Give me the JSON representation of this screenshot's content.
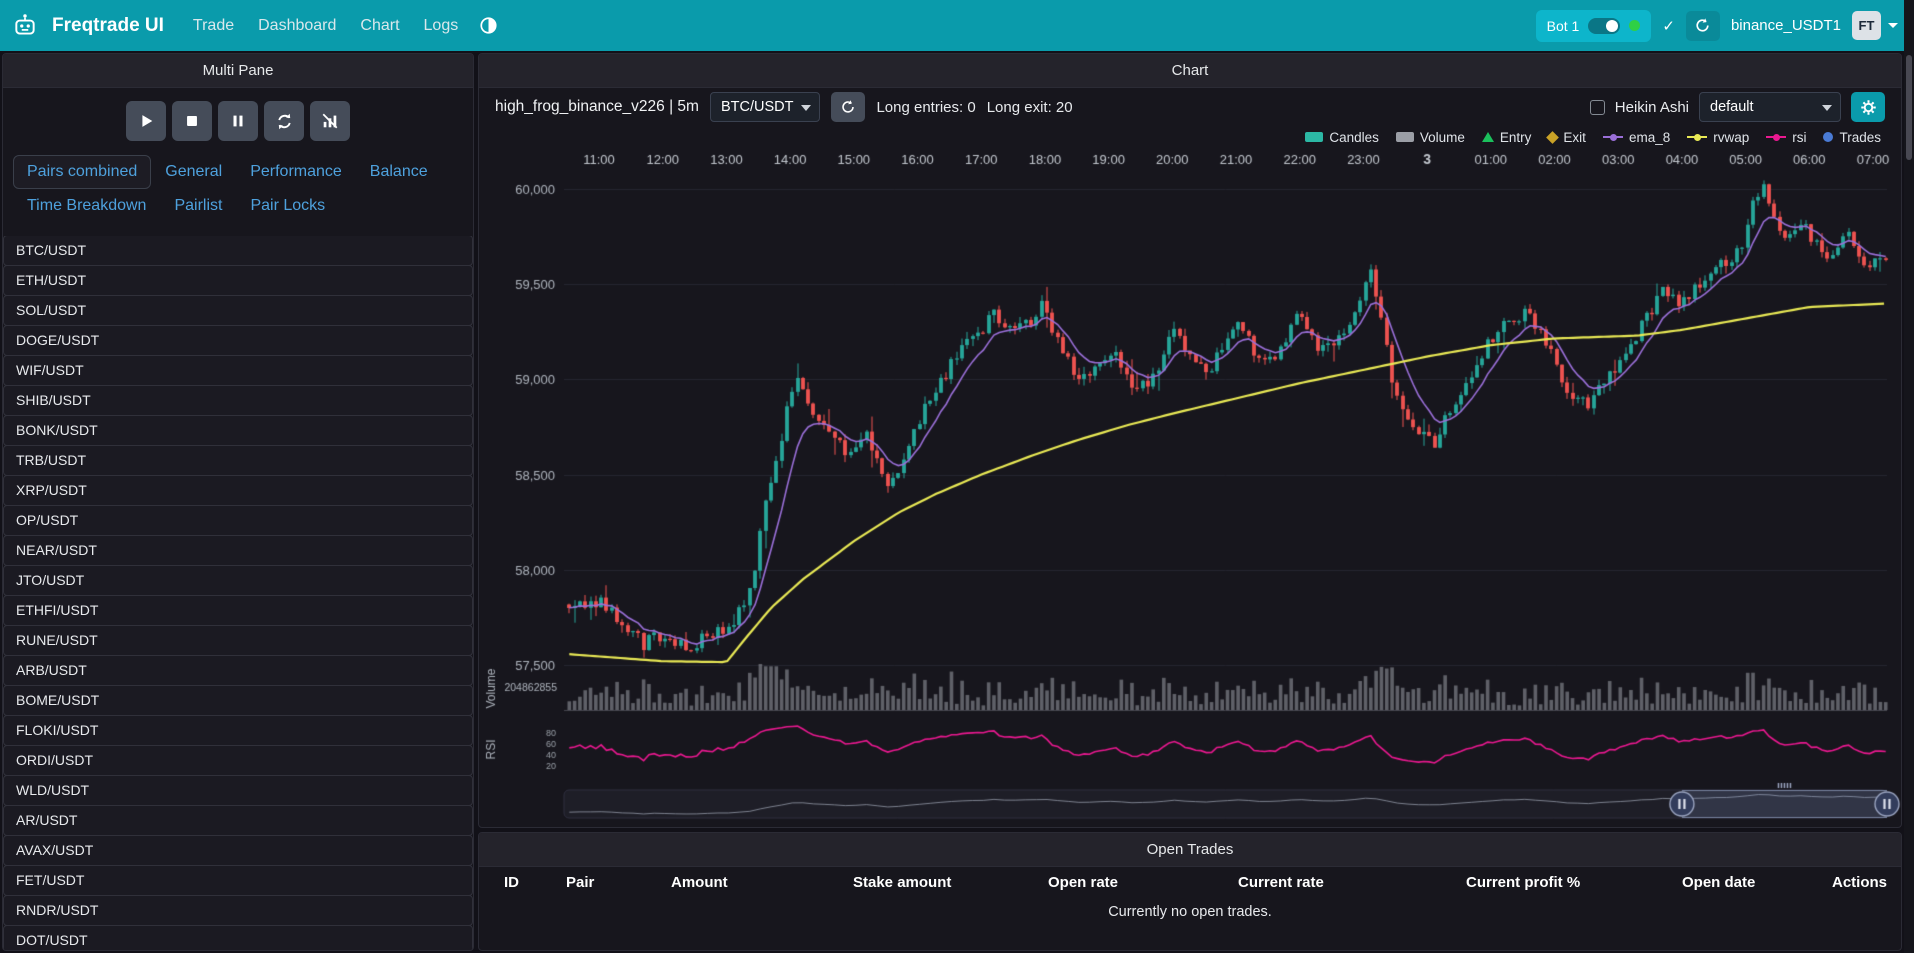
{
  "navbar": {
    "brand": "Freqtrade UI",
    "links": [
      "Trade",
      "Dashboard",
      "Chart",
      "Logs"
    ],
    "bot_badge": {
      "label": "Bot 1"
    },
    "check_icon": "✓",
    "exchange_label": "binance_USDT1",
    "avatar_label": "FT"
  },
  "left_panel": {
    "title": "Multi Pane",
    "tabs_row1": [
      "Pairs combined",
      "General",
      "Performance",
      "Balance"
    ],
    "tabs_row2": [
      "Time Breakdown",
      "Pairlist",
      "Pair Locks"
    ],
    "active_tab": "Pairs combined",
    "pairs": [
      "BTC/USDT",
      "ETH/USDT",
      "SOL/USDT",
      "DOGE/USDT",
      "WIF/USDT",
      "SHIB/USDT",
      "BONK/USDT",
      "TRB/USDT",
      "XRP/USDT",
      "OP/USDT",
      "NEAR/USDT",
      "JTO/USDT",
      "ETHFI/USDT",
      "RUNE/USDT",
      "ARB/USDT",
      "BOME/USDT",
      "FLOKI/USDT",
      "ORDI/USDT",
      "WLD/USDT",
      "AR/USDT",
      "AVAX/USDT",
      "FET/USDT",
      "RNDR/USDT",
      "DOT/USDT"
    ]
  },
  "chart_panel": {
    "title": "Chart",
    "strategy_label": "high_frog_binance_v226 | 5m",
    "pair_select_value": "BTC/USDT",
    "entries_label": "Long entries: 0",
    "exit_label": "Long exit: 20",
    "heikin_ashi_label": "Heikin Ashi",
    "plot_config_value": "default",
    "legend": [
      {
        "label": "Candles",
        "type": "rect",
        "color": "#2cb8a5"
      },
      {
        "label": "Volume",
        "type": "rect",
        "color": "#9b9ea6"
      },
      {
        "label": "Entry",
        "type": "triangle",
        "color": "#1bc05c"
      },
      {
        "label": "Exit",
        "type": "diamond",
        "color": "#c9a227"
      },
      {
        "label": "ema_8",
        "type": "line",
        "color": "#9a6fd8"
      },
      {
        "label": "rvwap",
        "type": "line",
        "color": "#e9e955"
      },
      {
        "label": "rsi",
        "type": "line",
        "color": "#ea1890"
      },
      {
        "label": "Trades",
        "type": "circle",
        "color": "#4a7bd5"
      }
    ]
  },
  "open_trades": {
    "title": "Open Trades",
    "columns": [
      "ID",
      "Pair",
      "Amount",
      "Stake amount",
      "Open rate",
      "Current rate",
      "Current profit %",
      "Open date",
      "Actions"
    ],
    "empty_message": "Currently no open trades."
  },
  "chart_data": {
    "type": "candlestick",
    "pair": "BTC/USDT",
    "timeframe": "5m",
    "x_labels": [
      "11:00",
      "12:00",
      "13:00",
      "14:00",
      "15:00",
      "16:00",
      "17:00",
      "18:00",
      "19:00",
      "20:00",
      "21:00",
      "22:00",
      "23:00",
      "3",
      "01:00",
      "02:00",
      "03:00",
      "04:00",
      "05:00",
      "06:00",
      "07:00"
    ],
    "y_ticks": [
      57500,
      58000,
      58500,
      59000,
      59500,
      60000
    ],
    "y_range": [
      57350,
      60150
    ],
    "price_anchors": [
      [
        10.4,
        57790
      ],
      [
        11,
        57830
      ],
      [
        11.3,
        57740
      ],
      [
        11.7,
        57610
      ],
      [
        12,
        57660
      ],
      [
        12.4,
        57590
      ],
      [
        12.8,
        57680
      ],
      [
        13.1,
        57710
      ],
      [
        13.4,
        57900
      ],
      [
        13.6,
        58320
      ],
      [
        13.8,
        58560
      ],
      [
        14,
        58920
      ],
      [
        14.1,
        59060
      ],
      [
        14.3,
        58820
      ],
      [
        14.6,
        58760
      ],
      [
        14.9,
        58610
      ],
      [
        15.2,
        58700
      ],
      [
        15.5,
        58440
      ],
      [
        15.8,
        58560
      ],
      [
        16.1,
        58860
      ],
      [
        16.4,
        59010
      ],
      [
        16.7,
        59160
      ],
      [
        17,
        59260
      ],
      [
        17.2,
        59360
      ],
      [
        17.5,
        59240
      ],
      [
        17.8,
        59310
      ],
      [
        18,
        59400
      ],
      [
        18.2,
        59190
      ],
      [
        18.5,
        59010
      ],
      [
        18.8,
        59060
      ],
      [
        19.1,
        59150
      ],
      [
        19.4,
        58950
      ],
      [
        19.7,
        59010
      ],
      [
        20,
        59260
      ],
      [
        20.3,
        59110
      ],
      [
        20.6,
        59060
      ],
      [
        21,
        59300
      ],
      [
        21.3,
        59150
      ],
      [
        21.6,
        59110
      ],
      [
        22,
        59350
      ],
      [
        22.3,
        59160
      ],
      [
        22.6,
        59210
      ],
      [
        22.9,
        59360
      ],
      [
        23.1,
        59590
      ],
      [
        23.3,
        59300
      ],
      [
        23.5,
        58900
      ],
      [
        23.8,
        58760
      ],
      [
        24.1,
        58660
      ],
      [
        24.4,
        58860
      ],
      [
        24.7,
        59010
      ],
      [
        25,
        59210
      ],
      [
        25.3,
        59310
      ],
      [
        25.6,
        59360
      ],
      [
        25.9,
        59160
      ],
      [
        26.2,
        58960
      ],
      [
        26.5,
        58860
      ],
      [
        26.8,
        59010
      ],
      [
        27.1,
        59110
      ],
      [
        27.4,
        59310
      ],
      [
        27.7,
        59460
      ],
      [
        28,
        59410
      ],
      [
        28.3,
        59510
      ],
      [
        28.6,
        59610
      ],
      [
        28.9,
        59660
      ],
      [
        29.1,
        59900
      ],
      [
        29.3,
        60000
      ],
      [
        29.5,
        59800
      ],
      [
        29.7,
        59760
      ],
      [
        29.9,
        59850
      ],
      [
        30.1,
        59710
      ],
      [
        30.3,
        59660
      ],
      [
        30.6,
        59760
      ],
      [
        30.8,
        59610
      ],
      [
        31.3,
        59630
      ]
    ],
    "rvwap_anchors": [
      [
        10.4,
        57560
      ],
      [
        12,
        57520
      ],
      [
        13,
        57515
      ],
      [
        13.3,
        57640
      ],
      [
        13.7,
        57800
      ],
      [
        14.2,
        57950
      ],
      [
        15,
        58150
      ],
      [
        15.7,
        58300
      ],
      [
        16.3,
        58400
      ],
      [
        17,
        58500
      ],
      [
        17.8,
        58600
      ],
      [
        18.5,
        58680
      ],
      [
        19.3,
        58760
      ],
      [
        20,
        58820
      ],
      [
        21,
        58900
      ],
      [
        22,
        58980
      ],
      [
        23,
        59050
      ],
      [
        24,
        59120
      ],
      [
        25,
        59180
      ],
      [
        26,
        59215
      ],
      [
        27.3,
        59230
      ],
      [
        28,
        59260
      ],
      [
        29,
        59320
      ],
      [
        30,
        59380
      ],
      [
        31.3,
        59400
      ]
    ],
    "volume_axis_label": "204862855",
    "rsi_ticks": [
      80,
      60,
      40,
      20
    ],
    "pane_labels": {
      "volume": "Volume",
      "rsi": "RSI"
    },
    "nav_selection": [
      0.845,
      1.0
    ],
    "colors": {
      "up": "#26a69a",
      "down": "#ef5350",
      "ema": "#9a6fd8",
      "rvwap": "#e9e955",
      "rsi": "#ea1890",
      "volume": "rgba(155,158,166,0.55)",
      "grid": "#262631",
      "axis_text": "#c3c8cf"
    }
  }
}
